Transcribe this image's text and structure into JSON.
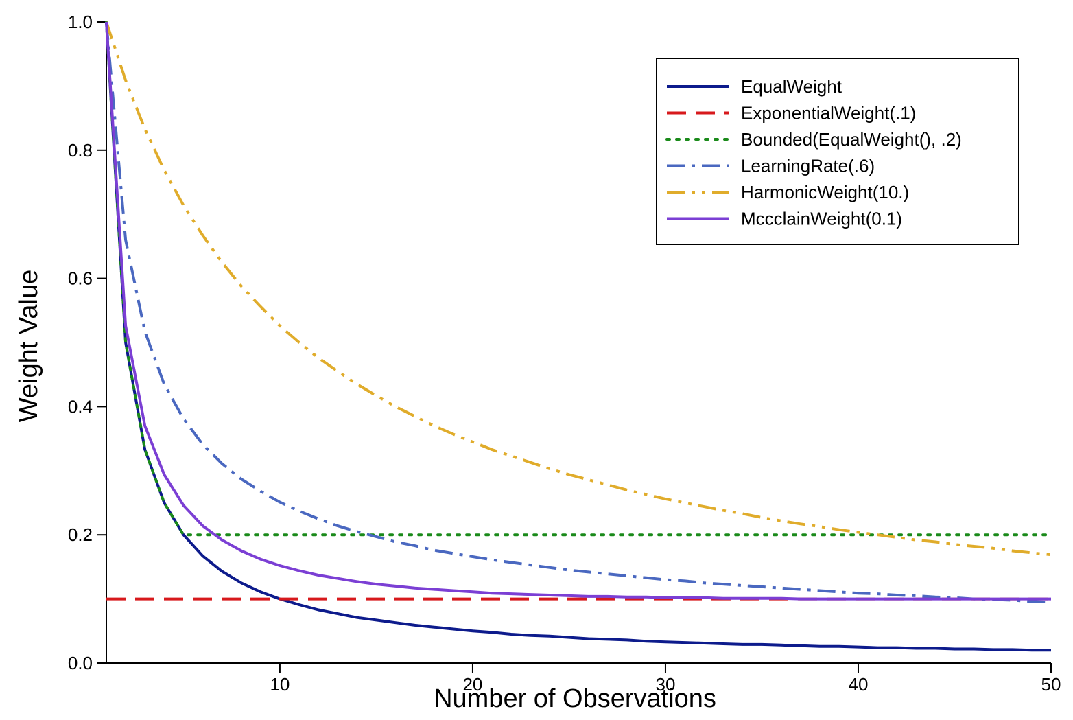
{
  "chart_data": {
    "type": "line",
    "xlabel": "Number of Observations",
    "ylabel": "Weight Value",
    "xlim": [
      1,
      50
    ],
    "ylim": [
      0,
      1
    ],
    "x_ticks": [
      10,
      20,
      30,
      40,
      50
    ],
    "y_ticks": [
      0.0,
      0.2,
      0.4,
      0.6,
      0.8,
      1.0
    ],
    "y_tick_labels": [
      "0.0",
      "0.2",
      "0.4",
      "0.6",
      "0.8",
      "1.0"
    ],
    "x_tick_labels": [
      "10",
      "20",
      "30",
      "40",
      "50"
    ],
    "grid": false,
    "legend_position": "top-right",
    "x": [
      1,
      2,
      3,
      4,
      5,
      6,
      7,
      8,
      9,
      10,
      11,
      12,
      13,
      14,
      15,
      16,
      17,
      18,
      19,
      20,
      21,
      22,
      23,
      24,
      25,
      26,
      27,
      28,
      29,
      30,
      31,
      32,
      33,
      34,
      35,
      36,
      37,
      38,
      39,
      40,
      41,
      42,
      43,
      44,
      45,
      46,
      47,
      48,
      49,
      50
    ],
    "series": [
      {
        "name": "EqualWeight",
        "color": "#0d1b8c",
        "dash": "solid",
        "values": [
          1.0,
          0.5,
          0.333,
          0.25,
          0.2,
          0.167,
          0.143,
          0.125,
          0.111,
          0.1,
          0.091,
          0.083,
          0.077,
          0.071,
          0.067,
          0.063,
          0.059,
          0.056,
          0.053,
          0.05,
          0.048,
          0.045,
          0.043,
          0.042,
          0.04,
          0.038,
          0.037,
          0.036,
          0.034,
          0.033,
          0.032,
          0.031,
          0.03,
          0.029,
          0.029,
          0.028,
          0.027,
          0.026,
          0.026,
          0.025,
          0.024,
          0.024,
          0.023,
          0.023,
          0.022,
          0.022,
          0.021,
          0.021,
          0.02,
          0.02
        ]
      },
      {
        "name": "ExponentialWeight(.1)",
        "color": "#d7191c",
        "dash": "dashed",
        "values": [
          0.1,
          0.1,
          0.1,
          0.1,
          0.1,
          0.1,
          0.1,
          0.1,
          0.1,
          0.1,
          0.1,
          0.1,
          0.1,
          0.1,
          0.1,
          0.1,
          0.1,
          0.1,
          0.1,
          0.1,
          0.1,
          0.1,
          0.1,
          0.1,
          0.1,
          0.1,
          0.1,
          0.1,
          0.1,
          0.1,
          0.1,
          0.1,
          0.1,
          0.1,
          0.1,
          0.1,
          0.1,
          0.1,
          0.1,
          0.1,
          0.1,
          0.1,
          0.1,
          0.1,
          0.1,
          0.1,
          0.1,
          0.1,
          0.1,
          0.1
        ]
      },
      {
        "name": "Bounded(EqualWeight(), .2)",
        "color": "#1a8a1a",
        "dash": "dotted",
        "values": [
          1.0,
          0.5,
          0.333,
          0.25,
          0.2,
          0.2,
          0.2,
          0.2,
          0.2,
          0.2,
          0.2,
          0.2,
          0.2,
          0.2,
          0.2,
          0.2,
          0.2,
          0.2,
          0.2,
          0.2,
          0.2,
          0.2,
          0.2,
          0.2,
          0.2,
          0.2,
          0.2,
          0.2,
          0.2,
          0.2,
          0.2,
          0.2,
          0.2,
          0.2,
          0.2,
          0.2,
          0.2,
          0.2,
          0.2,
          0.2,
          0.2,
          0.2,
          0.2,
          0.2,
          0.2,
          0.2,
          0.2,
          0.2,
          0.2,
          0.2
        ]
      },
      {
        "name": "LearningRate(.6)",
        "color": "#4a68c0",
        "dash": "dashdot",
        "values": [
          1.0,
          0.66,
          0.517,
          0.435,
          0.381,
          0.341,
          0.311,
          0.287,
          0.268,
          0.251,
          0.237,
          0.225,
          0.214,
          0.205,
          0.197,
          0.189,
          0.183,
          0.176,
          0.171,
          0.166,
          0.161,
          0.157,
          0.153,
          0.149,
          0.145,
          0.142,
          0.139,
          0.136,
          0.133,
          0.13,
          0.128,
          0.125,
          0.123,
          0.121,
          0.119,
          0.117,
          0.115,
          0.113,
          0.111,
          0.109,
          0.108,
          0.106,
          0.105,
          0.103,
          0.102,
          0.1,
          0.099,
          0.098,
          0.096,
          0.095
        ]
      },
      {
        "name": "HarmonicWeight(10.)",
        "color": "#e0ac2b",
        "dash": "dashdotdot",
        "values": [
          1.0,
          0.909,
          0.833,
          0.769,
          0.714,
          0.667,
          0.625,
          0.588,
          0.556,
          0.526,
          0.5,
          0.476,
          0.455,
          0.435,
          0.417,
          0.4,
          0.385,
          0.37,
          0.357,
          0.345,
          0.333,
          0.323,
          0.313,
          0.303,
          0.294,
          0.286,
          0.278,
          0.27,
          0.263,
          0.256,
          0.25,
          0.244,
          0.238,
          0.233,
          0.227,
          0.222,
          0.217,
          0.213,
          0.208,
          0.204,
          0.2,
          0.196,
          0.192,
          0.189,
          0.185,
          0.182,
          0.179,
          0.175,
          0.172,
          0.169
        ]
      },
      {
        "name": "MccclainWeight(0.1)",
        "color": "#7b3fd4",
        "dash": "solid",
        "values": [
          1.0,
          0.526,
          0.37,
          0.294,
          0.246,
          0.214,
          0.192,
          0.175,
          0.162,
          0.152,
          0.144,
          0.137,
          0.132,
          0.127,
          0.123,
          0.12,
          0.117,
          0.115,
          0.113,
          0.111,
          0.109,
          0.108,
          0.107,
          0.106,
          0.105,
          0.104,
          0.104,
          0.103,
          0.103,
          0.102,
          0.102,
          0.102,
          0.101,
          0.101,
          0.101,
          0.101,
          0.1,
          0.1,
          0.1,
          0.1,
          0.1,
          0.1,
          0.1,
          0.1,
          0.1,
          0.1,
          0.1,
          0.1,
          0.1,
          0.1
        ]
      }
    ]
  }
}
